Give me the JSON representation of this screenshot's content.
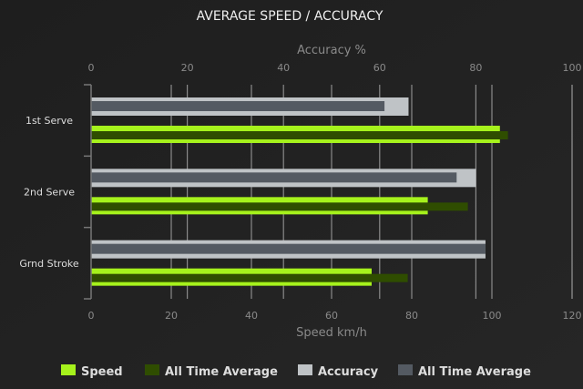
{
  "chart_data": {
    "type": "bar",
    "orientation": "horizontal",
    "title": "AVERAGE SPEED / ACCURACY",
    "categories": [
      "1st Serve",
      "2nd Serve",
      "Grnd Stroke"
    ],
    "top_axis": {
      "label": "Accuracy %",
      "range": [
        0,
        100
      ],
      "ticks": [
        "0",
        "20",
        "40",
        "60",
        "80",
        "100"
      ]
    },
    "bottom_axis": {
      "label": "Speed km/h",
      "range": [
        0,
        120
      ],
      "ticks": [
        "0",
        "20",
        "40",
        "60",
        "80",
        "100",
        "120"
      ]
    },
    "grid": true,
    "legend_position": "bottom",
    "series": [
      {
        "name": "Speed",
        "axis": "speed",
        "color": "#a6f21c",
        "values": [
          102,
          84,
          70
        ]
      },
      {
        "name": "All Time Average",
        "axis": "speed",
        "color": "#2f4d00",
        "values": [
          104,
          94,
          79
        ]
      },
      {
        "name": "Accuracy",
        "axis": "accuracy",
        "color": "#bfc3c6",
        "values": [
          66,
          80,
          82
        ]
      },
      {
        "name": "All Time Average",
        "axis": "accuracy",
        "color": "#545a62",
        "values": [
          61,
          76,
          82
        ]
      }
    ]
  }
}
